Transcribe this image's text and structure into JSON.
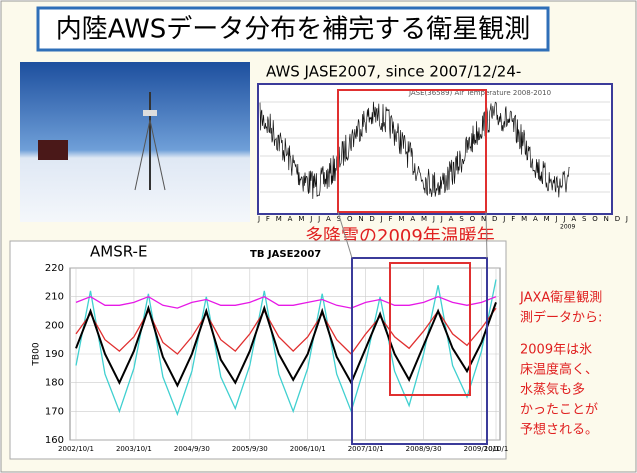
{
  "slide": {
    "title": "内陸AWSデータ分布を補完する衛星観測",
    "aws_caption": "AWS JASE2007,  since 2007/12/24-",
    "aws_plot_title": "JASE(36589) Air Temperature 2008-2010",
    "aws_month_axis": "J F M A M J J A S O N D J F M A M J J A S O N D J F M A M J J A S O N D J",
    "aws_year_label": "2009",
    "highlight": "多降雪の2009年温暖年",
    "note_heading": [
      "JAXA衛星観測",
      "測データから:"
    ],
    "note_body": [
      "2009年は氷",
      "床温度高く、",
      "水蒸気も多",
      "かったことが",
      "予想される。"
    ]
  },
  "chart_data": {
    "type": "line",
    "label": "AMSR-E",
    "title": "TB  JASE2007",
    "y_label": "TB00",
    "categories": [
      "2002/10/1",
      null,
      null,
      null,
      "2003/10/1",
      null,
      null,
      null,
      "2004/9/30",
      null,
      null,
      null,
      "2005/9/30",
      null,
      null,
      null,
      "2006/10/1",
      null,
      null,
      null,
      "2007/10/1",
      null,
      null,
      null,
      "2008/9/30",
      null,
      null,
      null,
      "2009/10/1",
      "2010/1"
    ],
    "ylim": [
      160,
      220
    ],
    "yticks": [
      160,
      170,
      180,
      190,
      200,
      210,
      220
    ],
    "grid": true,
    "series": [
      {
        "color": "#40d0d0",
        "values": [
          186,
          212,
          183,
          170,
          185,
          211,
          182,
          169,
          184,
          210,
          182,
          171,
          186,
          212,
          183,
          170,
          185,
          211,
          183,
          170,
          187,
          210,
          184,
          172,
          190,
          214,
          186,
          175,
          191,
          216
        ]
      },
      {
        "color": "#e619e6",
        "values": [
          208,
          210,
          207,
          207,
          208,
          210,
          207,
          206,
          208,
          209,
          207,
          207,
          208,
          210,
          207,
          207,
          208,
          209,
          207,
          206,
          208,
          209,
          207,
          207,
          208,
          210,
          208,
          207,
          208,
          210
        ]
      },
      {
        "color": "#e03030",
        "values": [
          197,
          204,
          195,
          191,
          196,
          205,
          194,
          190,
          196,
          204,
          195,
          191,
          197,
          205,
          196,
          191,
          196,
          204,
          195,
          190,
          197,
          203,
          196,
          192,
          198,
          205,
          197,
          193,
          199,
          206
        ]
      },
      {
        "color": "#000000",
        "values": [
          192,
          205,
          190,
          180,
          191,
          206,
          189,
          179,
          190,
          205,
          188,
          180,
          191,
          206,
          190,
          181,
          190,
          205,
          189,
          180,
          192,
          204,
          190,
          181,
          193,
          205,
          192,
          184,
          194,
          208
        ]
      }
    ]
  }
}
